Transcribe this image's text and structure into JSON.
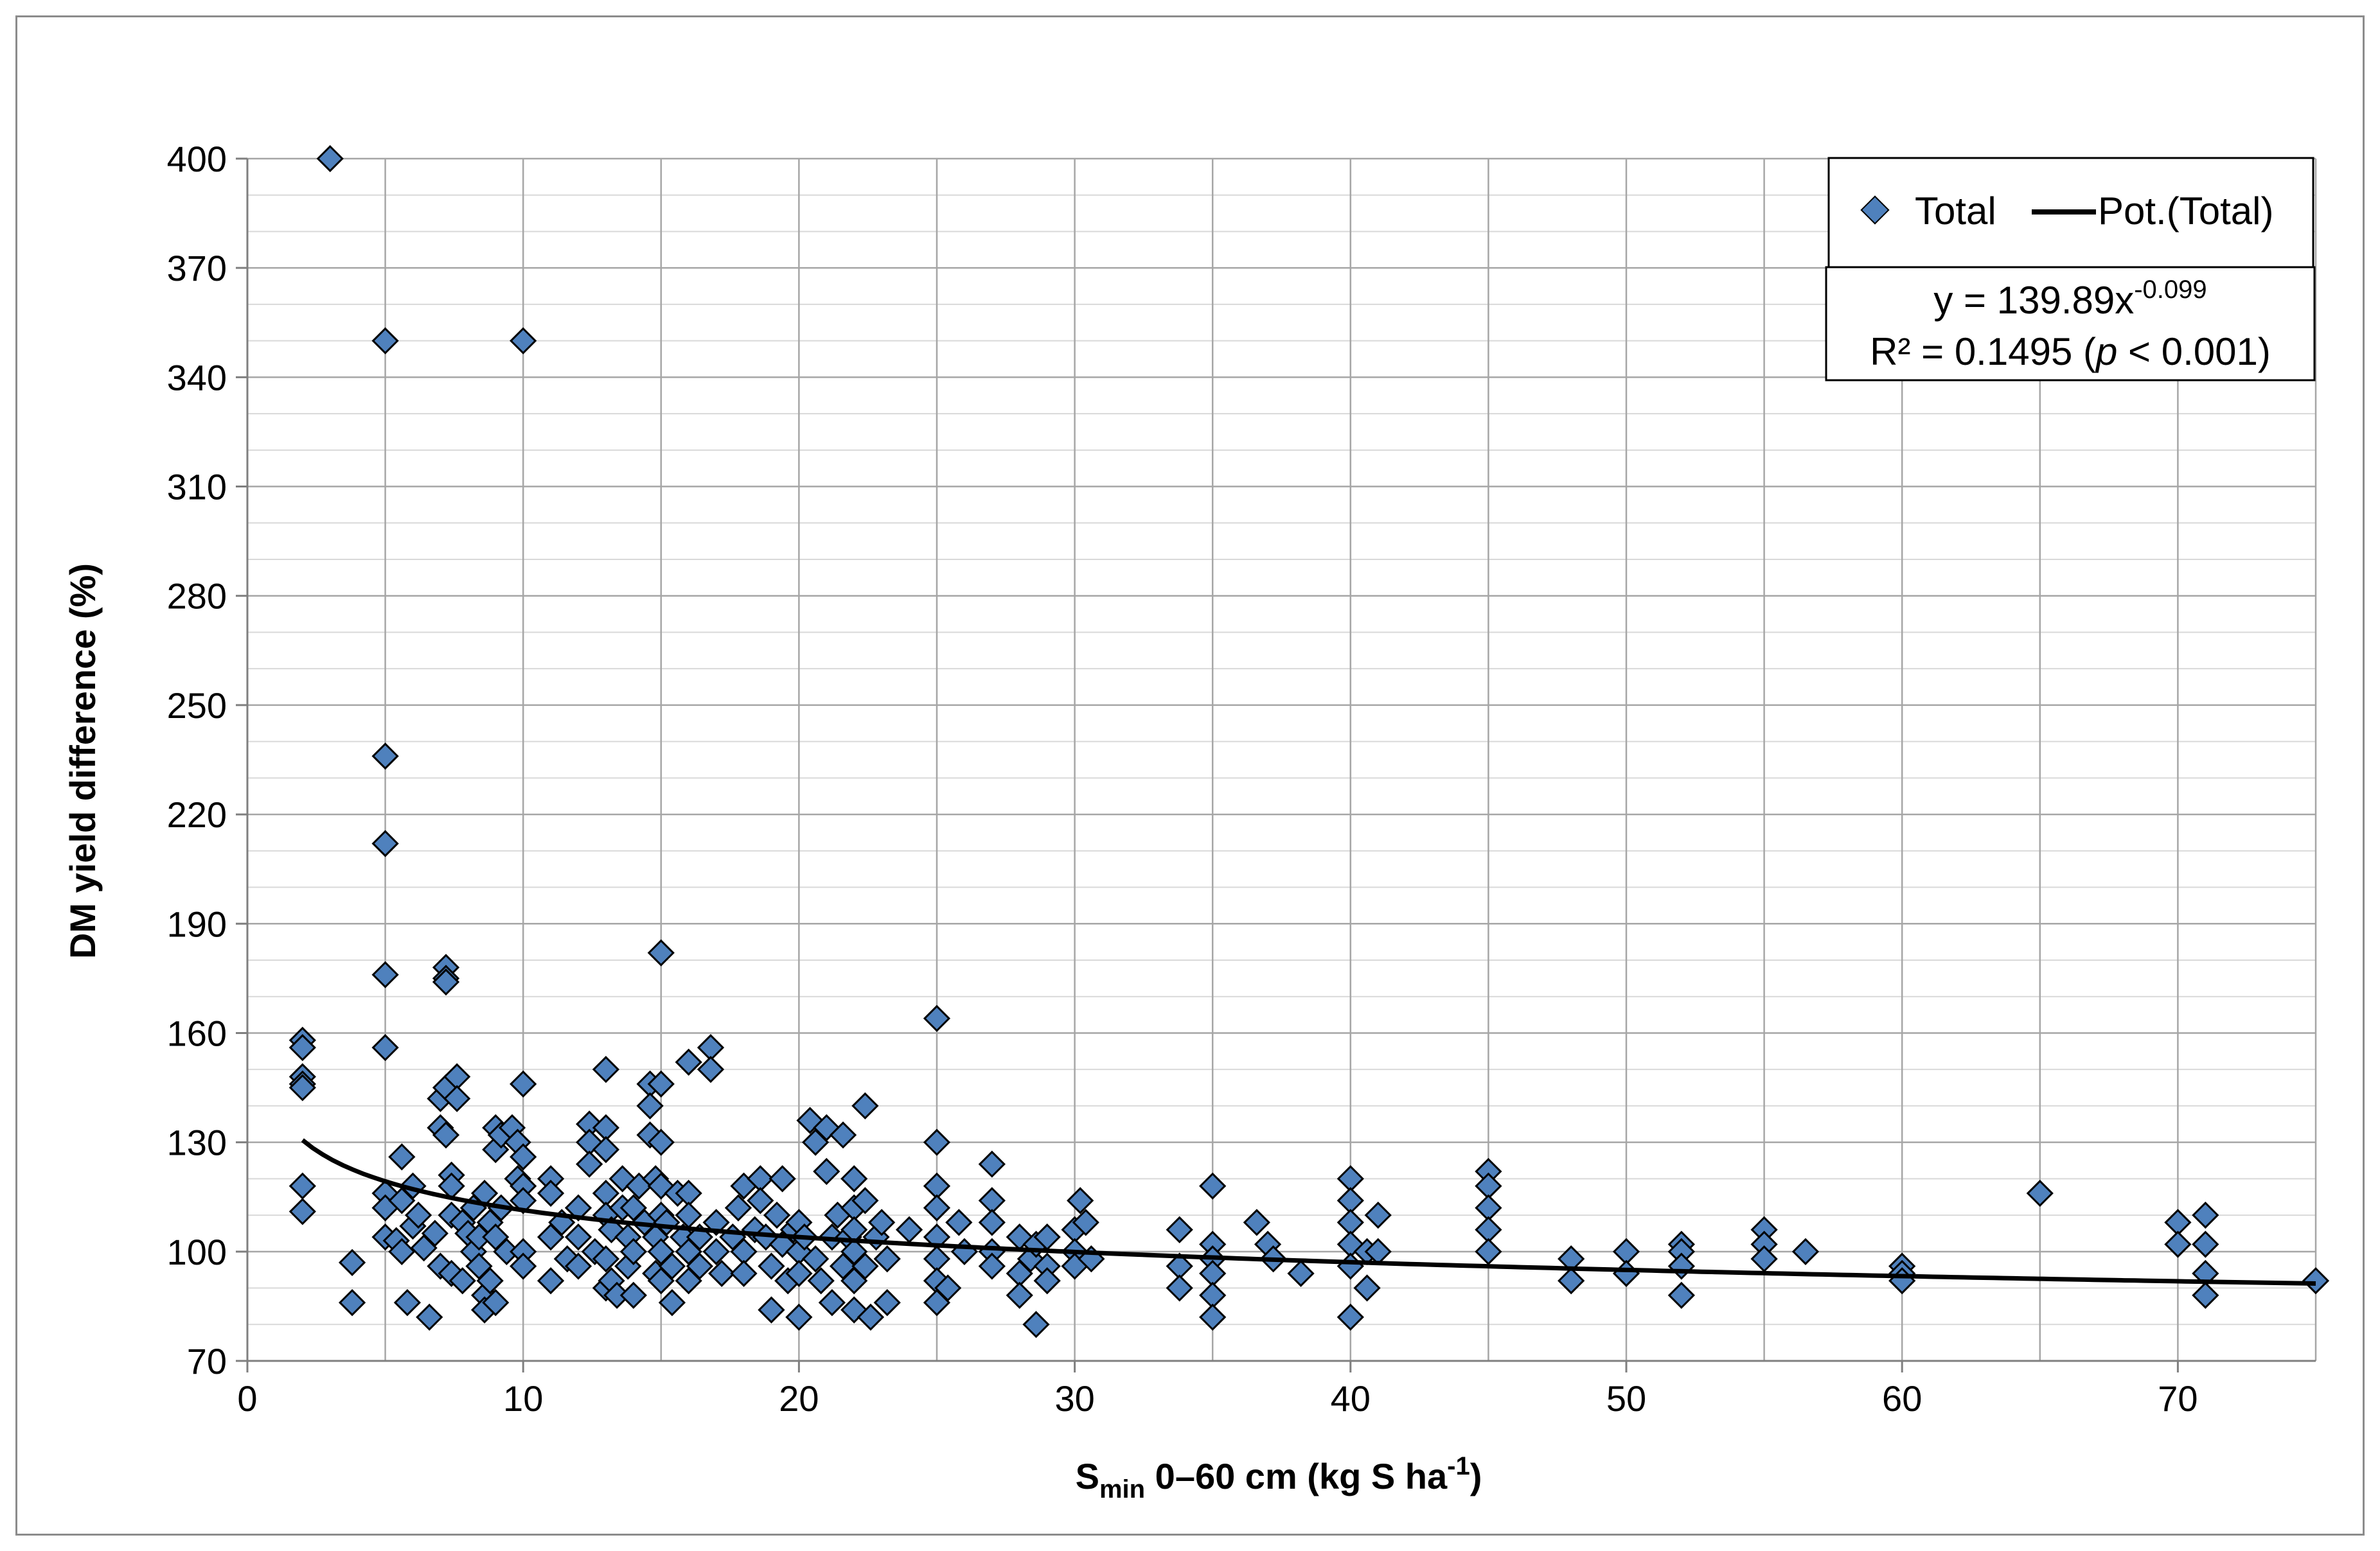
{
  "chart_data": {
    "type": "scatter",
    "title": "",
    "xlabel_main": "S",
    "xlabel_sub": "min",
    "xlabel_mid": " 0–60 cm (kg S ha",
    "xlabel_sup": "-1",
    "xlabel_end": ")",
    "ylabel": "DM yield difference (%)",
    "xlim": [
      0,
      75
    ],
    "ylim": [
      70,
      400
    ],
    "xticks": [
      0,
      10,
      20,
      30,
      40,
      50,
      60,
      70
    ],
    "yticks": [
      70,
      100,
      130,
      160,
      190,
      220,
      250,
      280,
      310,
      340,
      370,
      400
    ],
    "grid": true,
    "legend": {
      "position": "top-right",
      "series_label": "Total",
      "trend_label": "Pot.(Total)"
    },
    "equation": {
      "prefix": "y = 139.89x",
      "exponent": "-0.099",
      "r2": "R² = 0.1495 (",
      "p_italic": "p",
      "r2_end": " < 0.001)"
    },
    "trendline": {
      "a": 139.89,
      "b": -0.099,
      "x_start": 2,
      "x_end": 75
    },
    "marker_color": "#4f81bd",
    "series": [
      {
        "name": "Total",
        "points": [
          [
            3,
            400
          ],
          [
            5,
            350
          ],
          [
            10,
            350
          ],
          [
            5,
            236
          ],
          [
            5,
            212
          ],
          [
            5,
            176
          ],
          [
            15,
            182
          ],
          [
            7.2,
            178
          ],
          [
            7.2,
            175
          ],
          [
            7.2,
            174
          ],
          [
            5,
            156
          ],
          [
            25,
            164
          ],
          [
            2,
            158
          ],
          [
            2,
            156
          ],
          [
            2,
            148
          ],
          [
            2,
            146
          ],
          [
            2,
            145
          ],
          [
            2,
            118
          ],
          [
            2,
            111
          ],
          [
            3.8,
            97
          ],
          [
            3.8,
            86
          ],
          [
            5,
            116
          ],
          [
            5,
            112
          ],
          [
            5,
            104
          ],
          [
            5.4,
            103
          ],
          [
            5.6,
            126
          ],
          [
            5.6,
            114
          ],
          [
            5.6,
            100
          ],
          [
            5.8,
            86
          ],
          [
            6,
            118
          ],
          [
            6,
            107
          ],
          [
            6.2,
            110
          ],
          [
            6.4,
            101
          ],
          [
            6.6,
            82
          ],
          [
            6.8,
            105
          ],
          [
            7,
            142
          ],
          [
            7,
            134
          ],
          [
            7,
            96
          ],
          [
            7.2,
            145
          ],
          [
            7.2,
            132
          ],
          [
            7.4,
            121
          ],
          [
            7.4,
            118
          ],
          [
            7.4,
            110
          ],
          [
            7.4,
            94
          ],
          [
            7.6,
            148
          ],
          [
            7.6,
            142
          ],
          [
            7.8,
            108
          ],
          [
            7.8,
            92
          ],
          [
            8,
            105
          ],
          [
            8.2,
            100
          ],
          [
            8.2,
            112
          ],
          [
            8.4,
            104
          ],
          [
            8.4,
            96
          ],
          [
            8.6,
            88
          ],
          [
            8.6,
            84
          ],
          [
            8.6,
            116
          ],
          [
            8.8,
            108
          ],
          [
            8.8,
            92
          ],
          [
            9,
            134
          ],
          [
            9,
            128
          ],
          [
            9,
            104
          ],
          [
            9,
            86
          ],
          [
            9.2,
            132
          ],
          [
            9.2,
            112
          ],
          [
            9.4,
            100
          ],
          [
            9.6,
            134
          ],
          [
            9.8,
            130
          ],
          [
            9.8,
            120
          ],
          [
            10,
            146
          ],
          [
            10,
            126
          ],
          [
            10,
            118
          ],
          [
            10,
            114
          ],
          [
            10,
            100
          ],
          [
            10,
            96
          ],
          [
            11,
            120
          ],
          [
            11,
            116
          ],
          [
            11,
            104
          ],
          [
            11,
            92
          ],
          [
            11.4,
            108
          ],
          [
            11.6,
            98
          ],
          [
            12,
            112
          ],
          [
            12,
            104
          ],
          [
            12,
            96
          ],
          [
            12.4,
            135
          ],
          [
            12.4,
            130
          ],
          [
            12.4,
            124
          ],
          [
            12.6,
            100
          ],
          [
            13,
            150
          ],
          [
            13,
            134
          ],
          [
            13,
            128
          ],
          [
            13,
            116
          ],
          [
            13,
            110
          ],
          [
            13,
            98
          ],
          [
            13,
            90
          ],
          [
            13.2,
            106
          ],
          [
            13.2,
            92
          ],
          [
            13.4,
            88
          ],
          [
            13.6,
            120
          ],
          [
            13.6,
            112
          ],
          [
            13.8,
            104
          ],
          [
            13.8,
            96
          ],
          [
            14,
            112
          ],
          [
            14,
            100
          ],
          [
            14,
            88
          ],
          [
            14.2,
            118
          ],
          [
            14.4,
            108
          ],
          [
            14.6,
            146
          ],
          [
            14.6,
            140
          ],
          [
            14.6,
            132
          ],
          [
            14.8,
            120
          ],
          [
            14.8,
            104
          ],
          [
            14.8,
            94
          ],
          [
            15,
            146
          ],
          [
            15,
            130
          ],
          [
            15,
            118
          ],
          [
            15,
            110
          ],
          [
            15,
            100
          ],
          [
            15,
            92
          ],
          [
            15.2,
            108
          ],
          [
            15.4,
            96
          ],
          [
            15.4,
            86
          ],
          [
            15.6,
            116
          ],
          [
            15.8,
            104
          ],
          [
            16,
            152
          ],
          [
            16,
            116
          ],
          [
            16,
            110
          ],
          [
            16,
            100
          ],
          [
            16,
            92
          ],
          [
            16.4,
            104
          ],
          [
            16.4,
            96
          ],
          [
            16.8,
            156
          ],
          [
            16.8,
            150
          ],
          [
            17,
            108
          ],
          [
            17,
            100
          ],
          [
            17.2,
            94
          ],
          [
            17.6,
            104
          ],
          [
            17.8,
            112
          ],
          [
            18,
            118
          ],
          [
            18,
            100
          ],
          [
            18,
            94
          ],
          [
            18.4,
            106
          ],
          [
            18.6,
            120
          ],
          [
            18.6,
            114
          ],
          [
            18.8,
            104
          ],
          [
            19,
            96
          ],
          [
            19,
            84
          ],
          [
            19.2,
            110
          ],
          [
            19.4,
            120
          ],
          [
            19.4,
            102
          ],
          [
            19.6,
            92
          ],
          [
            19.8,
            106
          ],
          [
            20,
            108
          ],
          [
            20,
            100
          ],
          [
            20,
            94
          ],
          [
            20,
            82
          ],
          [
            20.2,
            104
          ],
          [
            20.4,
            136
          ],
          [
            20.6,
            130
          ],
          [
            20.6,
            98
          ],
          [
            20.8,
            92
          ],
          [
            21,
            122
          ],
          [
            21,
            134
          ],
          [
            21.2,
            104
          ],
          [
            21.2,
            86
          ],
          [
            21.4,
            110
          ],
          [
            21.6,
            132
          ],
          [
            21.6,
            96
          ],
          [
            21.8,
            104
          ],
          [
            22,
            120
          ],
          [
            22,
            112
          ],
          [
            22,
            106
          ],
          [
            22,
            100
          ],
          [
            22,
            92
          ],
          [
            22,
            84
          ],
          [
            22.4,
            114
          ],
          [
            22.4,
            140
          ],
          [
            22.4,
            96
          ],
          [
            22.6,
            82
          ],
          [
            22.8,
            104
          ],
          [
            23,
            108
          ],
          [
            23.2,
            98
          ],
          [
            23.2,
            86
          ],
          [
            24,
            106
          ],
          [
            25,
            130
          ],
          [
            25,
            118
          ],
          [
            25,
            112
          ],
          [
            25,
            104
          ],
          [
            25,
            98
          ],
          [
            25,
            92
          ],
          [
            25,
            86
          ],
          [
            25.4,
            90
          ],
          [
            25.8,
            108
          ],
          [
            26,
            100
          ],
          [
            27,
            124
          ],
          [
            27,
            114
          ],
          [
            27,
            108
          ],
          [
            27,
            100
          ],
          [
            27,
            96
          ],
          [
            28,
            104
          ],
          [
            28,
            94
          ],
          [
            28,
            88
          ],
          [
            28.4,
            98
          ],
          [
            28.6,
            102
          ],
          [
            28.6,
            80
          ],
          [
            29,
            104
          ],
          [
            29,
            96
          ],
          [
            29,
            92
          ],
          [
            30,
            106
          ],
          [
            30,
            100
          ],
          [
            30,
            96
          ],
          [
            30.2,
            114
          ],
          [
            30.4,
            108
          ],
          [
            30.6,
            98
          ],
          [
            33.8,
            106
          ],
          [
            33.8,
            96
          ],
          [
            33.8,
            90
          ],
          [
            35,
            118
          ],
          [
            35,
            102
          ],
          [
            35,
            98
          ],
          [
            35,
            94
          ],
          [
            35,
            88
          ],
          [
            35,
            82
          ],
          [
            36.6,
            108
          ],
          [
            37,
            102
          ],
          [
            37.2,
            98
          ],
          [
            38.2,
            94
          ],
          [
            40,
            120
          ],
          [
            40,
            114
          ],
          [
            40,
            108
          ],
          [
            40,
            102
          ],
          [
            40,
            96
          ],
          [
            40,
            82
          ],
          [
            40.6,
            100
          ],
          [
            40.6,
            90
          ],
          [
            41,
            110
          ],
          [
            41,
            100
          ],
          [
            45,
            122
          ],
          [
            45,
            118
          ],
          [
            45,
            112
          ],
          [
            45,
            106
          ],
          [
            45,
            100
          ],
          [
            48,
            98
          ],
          [
            48,
            92
          ],
          [
            50,
            100
          ],
          [
            50,
            94
          ],
          [
            52,
            102
          ],
          [
            52,
            100
          ],
          [
            52,
            96
          ],
          [
            52,
            88
          ],
          [
            55,
            106
          ],
          [
            55,
            102
          ],
          [
            55,
            98
          ],
          [
            56.5,
            100
          ],
          [
            60,
            96
          ],
          [
            60,
            94
          ],
          [
            60,
            92
          ],
          [
            65,
            116
          ],
          [
            70,
            108
          ],
          [
            70,
            102
          ],
          [
            71,
            110
          ],
          [
            71,
            102
          ],
          [
            71,
            94
          ],
          [
            71,
            88
          ],
          [
            75,
            92
          ]
        ]
      }
    ]
  }
}
